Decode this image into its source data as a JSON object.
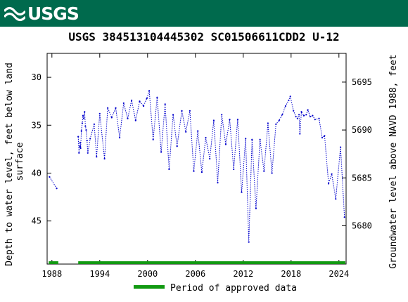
{
  "header": {
    "logo_text": "USGS",
    "bg_color": "#006a4d"
  },
  "chart_data": {
    "type": "line",
    "title": "USGS 384513104445302 SC01506611CDD2 U-12",
    "ylabel_left": "Depth to water level, feet below land surface",
    "ylabel_right": "Groundwater level above NAVD 1988, feet",
    "x_ticks": [
      "1988",
      "1994",
      "2000",
      "2006",
      "2012",
      "2018",
      "2024"
    ],
    "y_ticks_left": [
      "30",
      "35",
      "40",
      "45"
    ],
    "y_ticks_right": [
      "5695",
      "5690",
      "5685",
      "5680"
    ],
    "xlim": [
      1987.4,
      2024.9
    ],
    "ylim_left": [
      27.5,
      49.5
    ],
    "y_inverted": true,
    "series_color": "#0000cc",
    "approved_color": "#119911",
    "legend": {
      "label": "Period of approved data",
      "placement": "bottom"
    },
    "approved_periods": [
      [
        1987.6,
        1988.8
      ],
      [
        1991.3,
        2024.8
      ]
    ],
    "segments": [
      [
        [
          1987.7,
          40.4
        ],
        [
          1988.6,
          41.6
        ]
      ],
      [
        [
          1991.3,
          36.2
        ],
        [
          1991.4,
          37.9
        ],
        [
          1991.5,
          37.2
        ],
        [
          1991.55,
          36.8
        ],
        [
          1991.6,
          37.4
        ],
        [
          1991.7,
          35.6
        ],
        [
          1991.8,
          34.8
        ],
        [
          1991.9,
          34.0
        ],
        [
          1992.0,
          34.3
        ],
        [
          1992.1,
          33.6
        ],
        [
          1992.2,
          35.1
        ],
        [
          1992.3,
          35.5
        ],
        [
          1992.4,
          36.6
        ],
        [
          1992.5,
          37.9
        ],
        [
          1992.8,
          36.4
        ],
        [
          1993.3,
          34.9
        ],
        [
          1993.6,
          38.3
        ],
        [
          1994.0,
          33.8
        ],
        [
          1994.6,
          38.5
        ],
        [
          1995.0,
          33.2
        ],
        [
          1995.5,
          34.2
        ],
        [
          1996.0,
          33.2
        ],
        [
          1996.5,
          36.3
        ],
        [
          1997.0,
          32.7
        ],
        [
          1997.5,
          34.3
        ],
        [
          1998.0,
          32.4
        ],
        [
          1998.5,
          34.5
        ],
        [
          1999.0,
          32.5
        ],
        [
          1999.5,
          33.0
        ],
        [
          1999.9,
          32.2
        ],
        [
          2000.2,
          31.4
        ],
        [
          2000.7,
          36.5
        ],
        [
          2001.2,
          32.1
        ],
        [
          2001.7,
          37.8
        ],
        [
          2002.2,
          32.8
        ],
        [
          2002.7,
          39.6
        ],
        [
          2003.2,
          33.9
        ],
        [
          2003.7,
          37.2
        ],
        [
          2004.3,
          33.5
        ],
        [
          2004.8,
          35.7
        ],
        [
          2005.3,
          33.5
        ],
        [
          2005.8,
          39.8
        ],
        [
          2006.3,
          35.6
        ],
        [
          2006.8,
          39.9
        ],
        [
          2007.3,
          36.3
        ],
        [
          2007.8,
          38.5
        ],
        [
          2008.3,
          34.5
        ],
        [
          2008.8,
          41.0
        ],
        [
          2009.3,
          33.9
        ],
        [
          2009.8,
          37.0
        ],
        [
          2010.3,
          34.4
        ],
        [
          2010.8,
          39.6
        ],
        [
          2011.3,
          34.4
        ],
        [
          2011.8,
          42.0
        ],
        [
          2012.3,
          36.4
        ],
        [
          2012.7,
          47.2
        ],
        [
          2013.1,
          36.5
        ],
        [
          2013.6,
          43.7
        ],
        [
          2014.1,
          36.5
        ],
        [
          2014.6,
          39.8
        ],
        [
          2015.1,
          34.8
        ],
        [
          2015.6,
          40.0
        ],
        [
          2016.1,
          34.9
        ],
        [
          2016.5,
          34.5
        ],
        [
          2016.9,
          33.9
        ],
        [
          2017.3,
          33.0
        ],
        [
          2017.7,
          32.4
        ],
        [
          2017.9,
          32.0
        ],
        [
          2018.3,
          33.5
        ],
        [
          2018.6,
          34.1
        ],
        [
          2018.8,
          34.3
        ],
        [
          2019.0,
          33.9
        ],
        [
          2019.1,
          35.9
        ],
        [
          2019.3,
          33.6
        ],
        [
          2019.6,
          34.0
        ],
        [
          2019.9,
          33.9
        ],
        [
          2020.1,
          33.4
        ],
        [
          2020.4,
          34.1
        ],
        [
          2020.7,
          34.0
        ],
        [
          2021.0,
          34.4
        ],
        [
          2021.5,
          34.3
        ],
        [
          2021.9,
          36.3
        ],
        [
          2022.2,
          36.1
        ],
        [
          2022.7,
          41.1
        ],
        [
          2023.1,
          40.1
        ],
        [
          2023.6,
          42.7
        ],
        [
          2024.2,
          37.3
        ],
        [
          2024.7,
          44.6
        ]
      ]
    ]
  }
}
